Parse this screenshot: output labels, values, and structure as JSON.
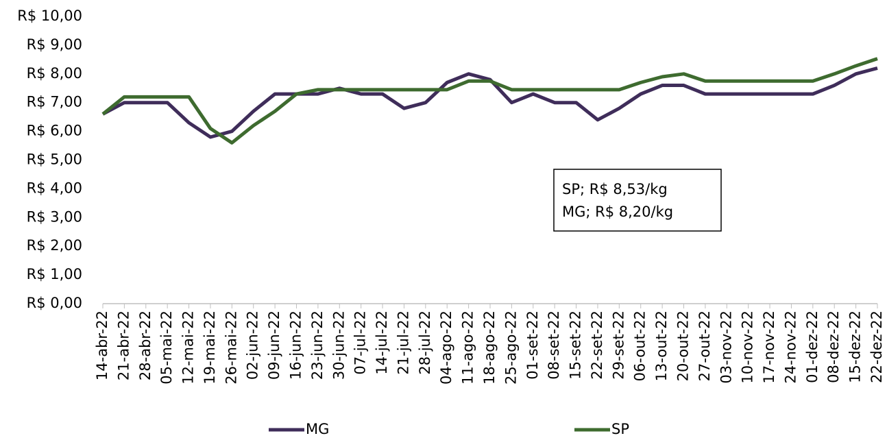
{
  "chart_data": {
    "type": "line",
    "categories": [
      "14-abr-22",
      "21-abr-22",
      "28-abr-22",
      "05-mai-22",
      "12-mai-22",
      "19-mai-22",
      "26-mai-22",
      "02-jun-22",
      "09-jun-22",
      "16-jun-22",
      "23-jun-22",
      "30-jun-22",
      "07-jul-22",
      "14-jul-22",
      "21-jul-22",
      "28-jul-22",
      "04-ago-22",
      "11-ago-22",
      "18-ago-22",
      "25-ago-22",
      "01-set-22",
      "08-set-22",
      "15-set-22",
      "22-set-22",
      "29-set-22",
      "06-out-22",
      "13-out-22",
      "20-out-22",
      "27-out-22",
      "03-nov-22",
      "10-nov-22",
      "17-nov-22",
      "24-nov-22",
      "01-dez-22",
      "08-dez-22",
      "15-dez-22",
      "22-dez-22"
    ],
    "series": [
      {
        "name": "MG",
        "color": "#3f2d5a",
        "values": [
          6.6,
          7.0,
          7.0,
          7.0,
          6.3,
          5.8,
          6.0,
          6.7,
          7.3,
          7.3,
          7.3,
          7.5,
          7.3,
          7.3,
          6.8,
          7.0,
          7.7,
          8.0,
          7.8,
          7.0,
          7.3,
          7.0,
          7.0,
          6.4,
          6.8,
          7.3,
          7.6,
          7.6,
          7.3,
          7.3,
          7.3,
          7.3,
          7.3,
          7.3,
          7.6,
          8.0,
          8.2
        ]
      },
      {
        "name": "SP",
        "color": "#3e6b2f",
        "values": [
          6.6,
          7.2,
          7.2,
          7.2,
          7.2,
          6.1,
          5.6,
          6.2,
          6.7,
          7.3,
          7.45,
          7.45,
          7.45,
          7.45,
          7.45,
          7.45,
          7.45,
          7.75,
          7.75,
          7.45,
          7.45,
          7.45,
          7.45,
          7.45,
          7.45,
          7.7,
          7.9,
          8.0,
          7.75,
          7.75,
          7.75,
          7.75,
          7.75,
          7.75,
          8.0,
          8.28,
          8.53
        ]
      }
    ],
    "ylim": [
      0,
      10
    ],
    "yticks": [
      {
        "value": 0,
        "label": "R$ 0,00"
      },
      {
        "value": 1,
        "label": "R$ 1,00"
      },
      {
        "value": 2,
        "label": "R$ 2,00"
      },
      {
        "value": 3,
        "label": "R$ 3,00"
      },
      {
        "value": 4,
        "label": "R$ 4,00"
      },
      {
        "value": 5,
        "label": "R$ 5,00"
      },
      {
        "value": 6,
        "label": "R$ 6,00"
      },
      {
        "value": 7,
        "label": "R$ 7,00"
      },
      {
        "value": 8,
        "label": "R$ 8,00"
      },
      {
        "value": 9,
        "label": "R$ 9,00"
      },
      {
        "value": 10,
        "label": "R$ 10,00"
      }
    ],
    "annotations": [
      "SP; R$ 8,53/kg",
      "MG; R$ 8,20/kg"
    ],
    "grid": false
  }
}
